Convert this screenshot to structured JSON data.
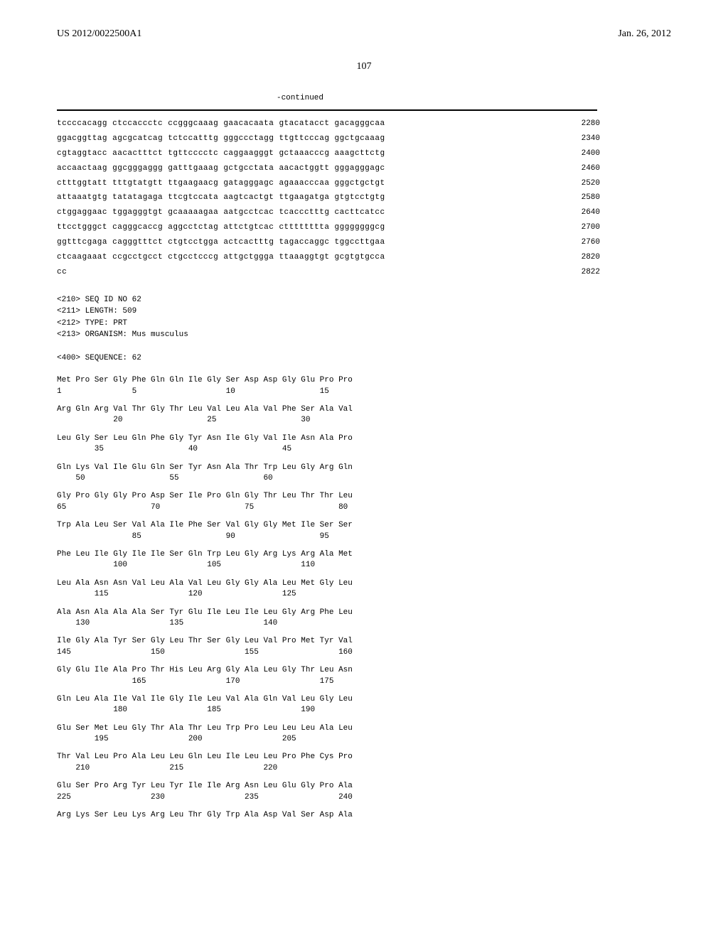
{
  "header": {
    "publication_number": "US 2012/0022500A1",
    "date": "Jan. 26, 2012"
  },
  "page_number": "107",
  "continued_label": "-continued",
  "dna_sequence": {
    "rows": [
      {
        "seq": "tccccacagg ctccaccctc ccgggcaaag gaacacaata gtacatacct gacagggcaa",
        "pos": "2280"
      },
      {
        "seq": "ggacggttag agcgcatcag tctccatttg gggccctagg ttgttcccag ggctgcaaag",
        "pos": "2340"
      },
      {
        "seq": "cgtaggtacc aacactttct tgttcccctc caggaagggt gctaaacccg aaagcttctg",
        "pos": "2400"
      },
      {
        "seq": "accaactaag ggcgggaggg gatttgaaag gctgcctata aacactggtt gggagggagc",
        "pos": "2460"
      },
      {
        "seq": "ctttggtatt tttgtatgtt ttgaagaacg gatagggagc agaaacccaa gggctgctgt",
        "pos": "2520"
      },
      {
        "seq": "attaaatgtg tatatagaga ttcgtccata aagtcactgt ttgaagatga gtgtcctgtg",
        "pos": "2580"
      },
      {
        "seq": "ctggaggaac tggagggtgt gcaaaaagaa aatgcctcac tcaccctttg cacttcatcc",
        "pos": "2640"
      },
      {
        "seq": "ttcctgggct cagggcaccg aggcctctag attctgtcac ctttttttta ggggggggcg",
        "pos": "2700"
      },
      {
        "seq": "ggtttcgaga cagggtttct ctgtcctgga actcactttg tagaccaggc tggccttgaa",
        "pos": "2760"
      },
      {
        "seq": "ctcaagaaat ccgcctgcct ctgcctcccg attgctggga ttaaaggtgt gcgtgtgcca",
        "pos": "2820"
      },
      {
        "seq": "cc",
        "pos": "2822"
      }
    ]
  },
  "seq_metadata": {
    "lines": [
      "<210> SEQ ID NO 62",
      "<211> LENGTH: 509",
      "<212> TYPE: PRT",
      "<213> ORGANISM: Mus musculus"
    ],
    "sequence_header": "<400> SEQUENCE: 62"
  },
  "protein_sequence": {
    "rows": [
      {
        "aa": "Met Pro Ser Gly Phe Gln Gln Ile Gly Ser Asp Asp Gly Glu Pro Pro",
        "nums": "1               5                   10                  15"
      },
      {
        "aa": "Arg Gln Arg Val Thr Gly Thr Leu Val Leu Ala Val Phe Ser Ala Val",
        "nums": "            20                  25                  30"
      },
      {
        "aa": "Leu Gly Ser Leu Gln Phe Gly Tyr Asn Ile Gly Val Ile Asn Ala Pro",
        "nums": "        35                  40                  45"
      },
      {
        "aa": "Gln Lys Val Ile Glu Gln Ser Tyr Asn Ala Thr Trp Leu Gly Arg Gln",
        "nums": "    50                  55                  60"
      },
      {
        "aa": "Gly Pro Gly Gly Pro Asp Ser Ile Pro Gln Gly Thr Leu Thr Thr Leu",
        "nums": "65                  70                  75                  80"
      },
      {
        "aa": "Trp Ala Leu Ser Val Ala Ile Phe Ser Val Gly Gly Met Ile Ser Ser",
        "nums": "                85                  90                  95"
      },
      {
        "aa": "Phe Leu Ile Gly Ile Ile Ser Gln Trp Leu Gly Arg Lys Arg Ala Met",
        "nums": "            100                 105                 110"
      },
      {
        "aa": "Leu Ala Asn Asn Val Leu Ala Val Leu Gly Gly Ala Leu Met Gly Leu",
        "nums": "        115                 120                 125"
      },
      {
        "aa": "Ala Asn Ala Ala Ala Ser Tyr Glu Ile Leu Ile Leu Gly Arg Phe Leu",
        "nums": "    130                 135                 140"
      },
      {
        "aa": "Ile Gly Ala Tyr Ser Gly Leu Thr Ser Gly Leu Val Pro Met Tyr Val",
        "nums": "145                 150                 155                 160"
      },
      {
        "aa": "Gly Glu Ile Ala Pro Thr His Leu Arg Gly Ala Leu Gly Thr Leu Asn",
        "nums": "                165                 170                 175"
      },
      {
        "aa": "Gln Leu Ala Ile Val Ile Gly Ile Leu Val Ala Gln Val Leu Gly Leu",
        "nums": "            180                 185                 190"
      },
      {
        "aa": "Glu Ser Met Leu Gly Thr Ala Thr Leu Trp Pro Leu Leu Leu Ala Leu",
        "nums": "        195                 200                 205"
      },
      {
        "aa": "Thr Val Leu Pro Ala Leu Leu Gln Leu Ile Leu Leu Pro Phe Cys Pro",
        "nums": "    210                 215                 220"
      },
      {
        "aa": "Glu Ser Pro Arg Tyr Leu Tyr Ile Ile Arg Asn Leu Glu Gly Pro Ala",
        "nums": "225                 230                 235                 240"
      },
      {
        "aa": "Arg Lys Ser Leu Lys Arg Leu Thr Gly Trp Ala Asp Val Ser Asp Ala",
        "nums": ""
      }
    ]
  }
}
